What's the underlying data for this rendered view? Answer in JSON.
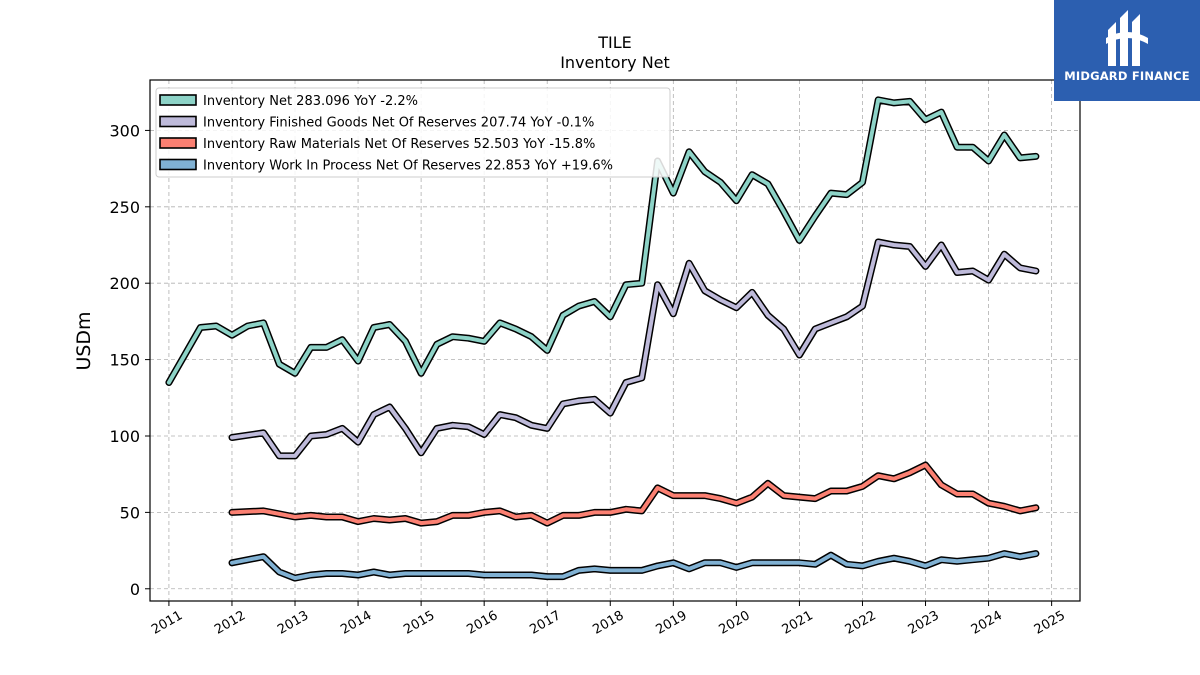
{
  "logo": {
    "text": "MIDGARD FINANCE",
    "color": "#2c5fb0"
  },
  "chart_data": {
    "type": "line",
    "title": "TILE",
    "subtitle": "Inventory Net",
    "ylabel": "USDm",
    "xlabel": "",
    "ylim": [
      -8,
      333
    ],
    "xlim": [
      2010.7,
      2025.45
    ],
    "yticks": [
      0,
      50,
      100,
      150,
      200,
      250,
      300
    ],
    "xticks": [
      "2011",
      "2012",
      "2013",
      "2014",
      "2015",
      "2016",
      "2017",
      "2018",
      "2019",
      "2020",
      "2021",
      "2022",
      "2023",
      "2024",
      "2025"
    ],
    "grid": true,
    "legend_position": "top-left",
    "series": [
      {
        "name": "Inventory Net  283.096 YoY -2.2%",
        "color": "#8dd3c7",
        "x": [
          2011.0,
          2011.25,
          2011.5,
          2011.75,
          2012.0,
          2012.25,
          2012.5,
          2012.75,
          2013.0,
          2013.25,
          2013.5,
          2013.75,
          2014.0,
          2014.25,
          2014.5,
          2014.75,
          2015.0,
          2015.25,
          2015.5,
          2015.75,
          2016.0,
          2016.25,
          2016.5,
          2016.75,
          2017.0,
          2017.25,
          2017.5,
          2017.75,
          2018.0,
          2018.25,
          2018.5,
          2018.75,
          2019.0,
          2019.25,
          2019.5,
          2019.75,
          2020.0,
          2020.25,
          2020.5,
          2020.75,
          2021.0,
          2021.25,
          2021.5,
          2021.75,
          2022.0,
          2022.25,
          2022.5,
          2022.75,
          2023.0,
          2023.25,
          2023.5,
          2023.75,
          2024.0,
          2024.25,
          2024.5,
          2024.75
        ],
        "values": [
          135,
          153,
          171,
          172,
          166,
          172,
          174,
          147,
          141,
          158,
          158,
          163,
          149,
          171,
          173,
          162,
          141,
          160,
          165,
          164,
          162,
          174,
          170,
          165,
          156,
          179,
          185,
          188,
          178,
          199,
          200,
          280,
          259,
          286,
          273,
          266,
          254,
          271,
          265,
          247,
          228,
          244,
          259,
          258,
          266,
          320,
          318,
          319,
          307,
          312,
          289,
          289,
          280,
          297,
          282,
          283
        ]
      },
      {
        "name": "Inventory Finished Goods Net Of Reserves  207.74 YoY -0.1%",
        "color": "#bebada",
        "x": [
          2012.0,
          2012.5,
          2012.75,
          2013.0,
          2013.25,
          2013.5,
          2013.75,
          2014.0,
          2014.25,
          2014.5,
          2014.75,
          2015.0,
          2015.25,
          2015.5,
          2015.75,
          2016.0,
          2016.25,
          2016.5,
          2016.75,
          2017.0,
          2017.25,
          2017.5,
          2017.75,
          2018.0,
          2018.25,
          2018.5,
          2018.75,
          2019.0,
          2019.25,
          2019.5,
          2019.75,
          2020.0,
          2020.25,
          2020.5,
          2020.75,
          2021.0,
          2021.25,
          2021.5,
          2021.75,
          2022.0,
          2022.25,
          2022.5,
          2022.75,
          2023.0,
          2023.25,
          2023.5,
          2023.75,
          2024.0,
          2024.25,
          2024.5,
          2024.75
        ],
        "values": [
          99,
          102,
          87,
          87,
          100,
          101,
          105,
          96,
          114,
          119,
          105,
          89,
          105,
          107,
          106,
          101,
          114,
          112,
          107,
          105,
          121,
          123,
          124,
          115,
          135,
          138,
          199,
          180,
          213,
          195,
          189,
          184,
          194,
          179,
          170,
          153,
          170,
          174,
          178,
          185,
          227,
          225,
          224,
          211,
          225,
          207,
          208,
          202,
          219,
          210,
          208
        ]
      },
      {
        "name": "Inventory Raw Materials Net Of Reserves  52.503 YoY -15.8%",
        "color": "#fb8072",
        "x": [
          2012.0,
          2012.5,
          2012.75,
          2013.0,
          2013.25,
          2013.5,
          2013.75,
          2014.0,
          2014.25,
          2014.5,
          2014.75,
          2015.0,
          2015.25,
          2015.5,
          2015.75,
          2016.0,
          2016.25,
          2016.5,
          2016.75,
          2017.0,
          2017.25,
          2017.5,
          2017.75,
          2018.0,
          2018.25,
          2018.5,
          2018.75,
          2019.0,
          2019.25,
          2019.5,
          2019.75,
          2020.0,
          2020.25,
          2020.5,
          2020.75,
          2021.0,
          2021.25,
          2021.5,
          2021.75,
          2022.0,
          2022.25,
          2022.5,
          2022.75,
          2023.0,
          2023.25,
          2023.5,
          2023.75,
          2024.0,
          2024.25,
          2024.5,
          2024.75
        ],
        "values": [
          50,
          51,
          49,
          47,
          48,
          47,
          47,
          44,
          46,
          45,
          46,
          43,
          44,
          48,
          48,
          50,
          51,
          47,
          48,
          43,
          48,
          48,
          50,
          50,
          52,
          51,
          66,
          61,
          61,
          61,
          59,
          56,
          60,
          69,
          61,
          60,
          59,
          64,
          64,
          67,
          74,
          72,
          76,
          81,
          68,
          62,
          62,
          56,
          54,
          51,
          53
        ]
      },
      {
        "name": "Inventory Work In Process Net Of Reserves  22.853 YoY +19.6%",
        "color": "#80b1d3",
        "x": [
          2012.0,
          2012.5,
          2012.75,
          2013.0,
          2013.25,
          2013.5,
          2013.75,
          2014.0,
          2014.25,
          2014.5,
          2014.75,
          2015.0,
          2015.25,
          2015.5,
          2015.75,
          2016.0,
          2016.25,
          2016.5,
          2016.75,
          2017.0,
          2017.25,
          2017.5,
          2017.75,
          2018.0,
          2018.25,
          2018.5,
          2018.75,
          2019.0,
          2019.25,
          2019.5,
          2019.75,
          2020.0,
          2020.25,
          2020.5,
          2020.75,
          2021.0,
          2021.25,
          2021.5,
          2021.75,
          2022.0,
          2022.25,
          2022.5,
          2022.75,
          2023.0,
          2023.25,
          2023.5,
          2023.75,
          2024.0,
          2024.25,
          2024.5,
          2024.75
        ],
        "values": [
          17,
          21,
          11,
          7,
          9,
          10,
          10,
          9,
          11,
          9,
          10,
          10,
          10,
          10,
          10,
          9,
          9,
          9,
          9,
          8,
          8,
          12,
          13,
          12,
          12,
          12,
          15,
          17,
          13,
          17,
          17,
          14,
          17,
          17,
          17,
          17,
          16,
          22,
          16,
          15,
          18,
          20,
          18,
          15,
          19,
          18,
          19,
          20,
          23,
          21,
          23
        ]
      }
    ]
  }
}
